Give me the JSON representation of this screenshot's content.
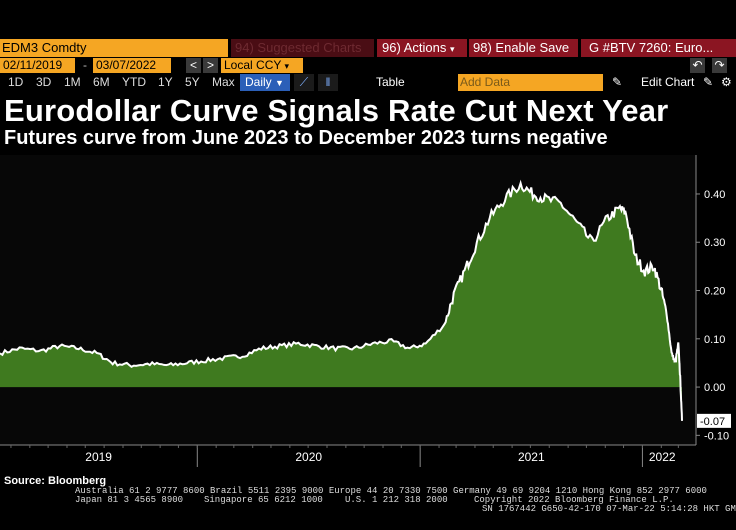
{
  "toolbar": {
    "ticker": "EDM3 Comdty",
    "suggested_charts": "Suggested Charts",
    "suggested_prefix": "94",
    "actions": "Actions",
    "actions_prefix": "96",
    "enable_save": "Enable Save",
    "enable_prefix": "98",
    "btv_label": "G #BTV 7260: Euro...",
    "dropdown_glyph": "▾"
  },
  "range": {
    "start_date": "02/11/2019",
    "separator": "-",
    "end_date": "03/07/2022",
    "currency": "Local CCY",
    "currency_glyph": "▾"
  },
  "periods": [
    "1D",
    "3D",
    "1M",
    "6M",
    "YTD",
    "1Y",
    "5Y",
    "Max"
  ],
  "frequency": {
    "label": "Daily",
    "glyph": "▼"
  },
  "chart_toolbar": {
    "table_label": "Table",
    "add_data_placeholder": "Add Data",
    "edit_chart": "Edit Chart",
    "undo_glyph": "↶",
    "redo_glyph": "↷",
    "edit_glyph": "✎",
    "settings_glyph": "⚙",
    "line_icon_glyph": "⟋",
    "bars_icon_glyph": "ǁ"
  },
  "headline": {
    "title": "Eurodollar Curve Signals Rate Cut Next Year",
    "subtitle": "Futures curve from June 2023 to December 2023 turns negative"
  },
  "source": "Source: Bloomberg",
  "footer": {
    "line1": "Australia 61 2 9777 8600 Brazil 5511 2395 9000 Europe 44 20 7330 7500 Germany 49 69 9204 1210 Hong Kong 852 2977 6000",
    "line2a": "Japan 81 3 4565 8900",
    "line2b": "Singapore 65 6212 1000",
    "line2c": "U.S. 1 212 318 2000",
    "line2d": "Copyright 2022 Bloomberg Finance L.P.",
    "line3": "SN 1767442 G650-42-170 07-Mar-22  5:14:28 HKT  GMT+8:00"
  },
  "colors": {
    "fill": "#3f7a1f",
    "line": "#ffffff",
    "orange": "#f5a623",
    "red_button": "#8b1522"
  },
  "chart_data": {
    "type": "area",
    "title": "Eurodollar Curve Signals Rate Cut Next Year",
    "subtitle": "Futures curve from June 2023 to December 2023 turns negative",
    "xlabel": "",
    "ylabel": "",
    "ylim": [
      -0.12,
      0.46
    ],
    "yticks": [
      0.4,
      0.3,
      0.2,
      0.1,
      0.0,
      -0.1
    ],
    "ytick_labels": [
      "0.40",
      "0.30",
      "0.20",
      "0.10",
      "0.00",
      "-0.10"
    ],
    "xtick_labels": [
      "2019",
      "2020",
      "2021",
      "2022"
    ],
    "x_range": [
      "2019-02-11",
      "2022-03-07"
    ],
    "last_value": -0.07,
    "last_value_label": "-0.07",
    "grid": false,
    "series": [
      {
        "values": [
          [
            "2019-02-11",
            0.07
          ],
          [
            "2019-03-15",
            0.08
          ],
          [
            "2019-04-20",
            0.075
          ],
          [
            "2019-05-20",
            0.085
          ],
          [
            "2019-06-20",
            0.08
          ],
          [
            "2019-07-20",
            0.07
          ],
          [
            "2019-08-15",
            0.05
          ],
          [
            "2019-09-15",
            0.045
          ],
          [
            "2019-10-15",
            0.048
          ],
          [
            "2019-11-15",
            0.045
          ],
          [
            "2019-12-15",
            0.05
          ],
          [
            "2020-01-15",
            0.055
          ],
          [
            "2020-02-15",
            0.06
          ],
          [
            "2020-03-15",
            0.065
          ],
          [
            "2020-04-15",
            0.08
          ],
          [
            "2020-05-15",
            0.085
          ],
          [
            "2020-06-15",
            0.09
          ],
          [
            "2020-07-15",
            0.085
          ],
          [
            "2020-08-15",
            0.08
          ],
          [
            "2020-09-15",
            0.08
          ],
          [
            "2020-10-15",
            0.09
          ],
          [
            "2020-11-15",
            0.095
          ],
          [
            "2020-12-15",
            0.08
          ],
          [
            "2021-01-10",
            0.09
          ],
          [
            "2021-02-10",
            0.13
          ],
          [
            "2021-02-25",
            0.19
          ],
          [
            "2021-03-15",
            0.24
          ],
          [
            "2021-04-01",
            0.29
          ],
          [
            "2021-04-25",
            0.35
          ],
          [
            "2021-05-20",
            0.39
          ],
          [
            "2021-06-15",
            0.42
          ],
          [
            "2021-07-05",
            0.4
          ],
          [
            "2021-07-25",
            0.39
          ],
          [
            "2021-08-20",
            0.38
          ],
          [
            "2021-09-15",
            0.34
          ],
          [
            "2021-10-10",
            0.3
          ],
          [
            "2021-11-05",
            0.35
          ],
          [
            "2021-11-25",
            0.37
          ],
          [
            "2021-12-05",
            0.36
          ],
          [
            "2021-12-20",
            0.27
          ],
          [
            "2022-01-05",
            0.24
          ],
          [
            "2022-01-20",
            0.25
          ],
          [
            "2022-02-01",
            0.2
          ],
          [
            "2022-02-10",
            0.15
          ],
          [
            "2022-02-18",
            0.07
          ],
          [
            "2022-02-24",
            0.05
          ],
          [
            "2022-03-01",
            0.09
          ],
          [
            "2022-03-04",
            0.02
          ],
          [
            "2022-03-07",
            -0.07
          ]
        ]
      }
    ]
  }
}
